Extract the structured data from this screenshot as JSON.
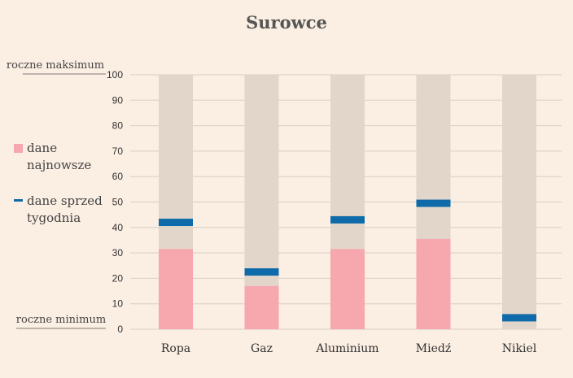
{
  "chart_data": {
    "type": "bar",
    "title": "Surowce",
    "categories": [
      "Ropa",
      "Gaz",
      "Aluminium",
      "Miedź",
      "Nikiel"
    ],
    "ylim": [
      0,
      100
    ],
    "yticks": [
      0,
      10,
      20,
      30,
      40,
      50,
      60,
      70,
      80,
      90,
      100
    ],
    "grid": true,
    "axis_notes": {
      "top": "roczne maksimum",
      "bottom": "roczne minimum"
    },
    "legend": {
      "placement": "left",
      "latest": {
        "label_line1": "dane",
        "label_line2": "najnowsze"
      },
      "previous": {
        "label_line1": "dane sprzed",
        "label_line2": "tygodnia"
      }
    },
    "series": [
      {
        "name": "dane najnowsze",
        "values": [
          31.5,
          17,
          31.5,
          35.5,
          0
        ]
      },
      {
        "name": "dane sprzed tygodnia",
        "values": [
          42,
          22.5,
          43,
          49.5,
          4.5
        ]
      }
    ],
    "colors": {
      "background_bar": "#e2d6cb",
      "latest": "#f7a7ae",
      "previous": "#0e6aa8",
      "grid": "#d9cfc6"
    }
  }
}
